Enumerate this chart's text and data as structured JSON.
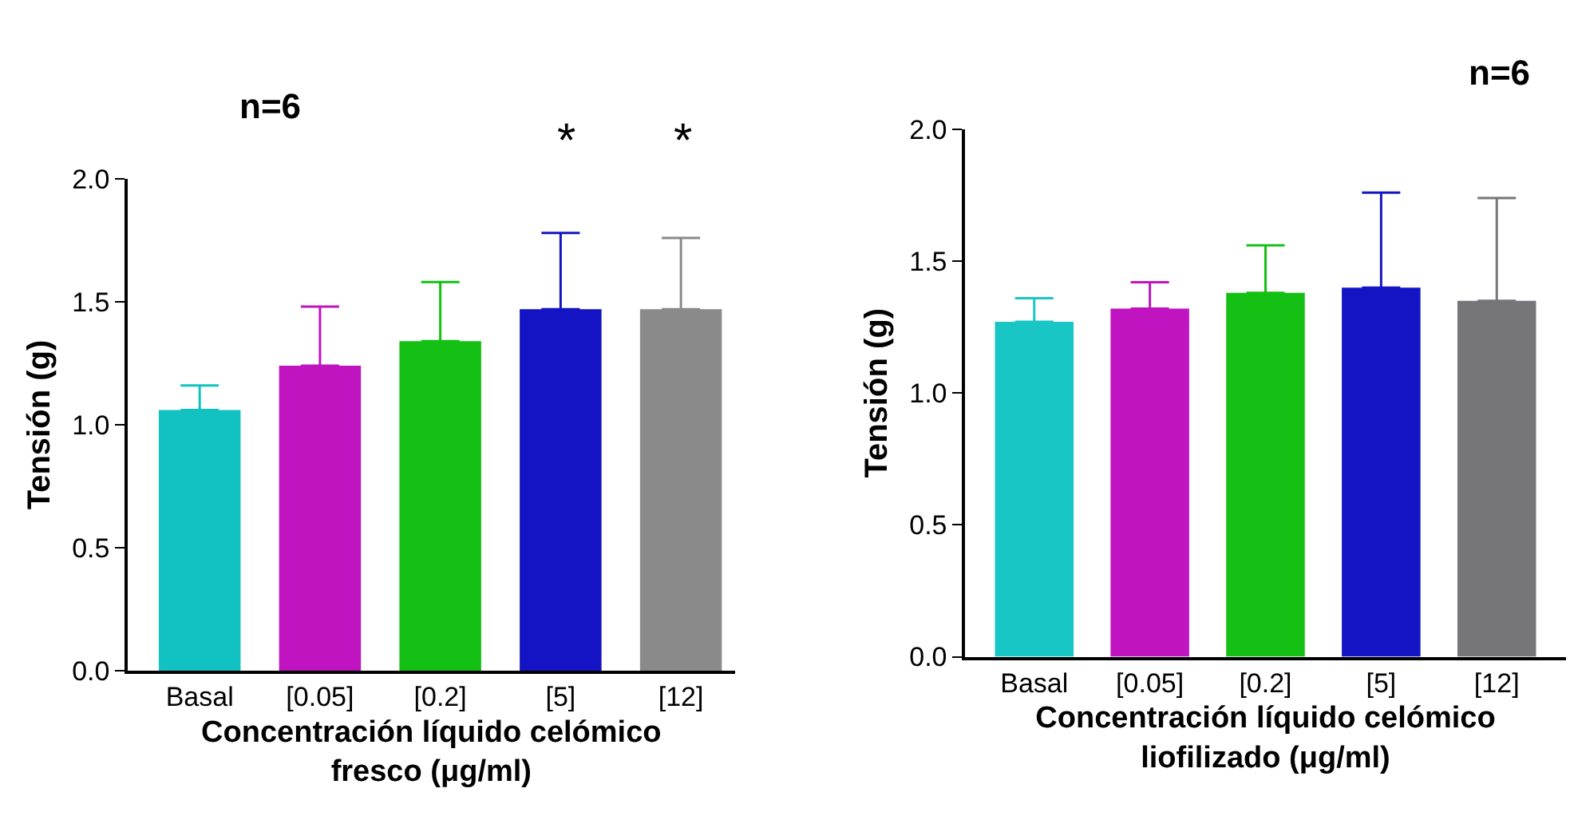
{
  "chart_data": [
    {
      "type": "bar",
      "xlabel": "Concentración líquido celómico\nfresco (μg/ml)",
      "ylabel": "Tensión (g)",
      "categories": [
        "Basal",
        "[0.05]",
        "[0.2]",
        "[5]",
        "[12]"
      ],
      "values": [
        1.06,
        1.24,
        1.34,
        1.47,
        1.47
      ],
      "errors": [
        [
          1.06,
          1.16
        ],
        [
          1.24,
          1.48
        ],
        [
          1.34,
          1.58
        ],
        [
          1.47,
          1.78
        ],
        [
          1.47,
          1.76
        ]
      ],
      "colors": [
        "#12c2c2",
        "#c014c0",
        "#14c014",
        "#1414c4",
        "#8a8a8a"
      ],
      "ylim": [
        0,
        2
      ],
      "yticks": [
        {
          "value": 0,
          "label": "0.0"
        },
        {
          "value": 0.5,
          "label": "0.5"
        },
        {
          "value": 1,
          "label": "1.0"
        },
        {
          "value": 1.5,
          "label": "1.5"
        },
        {
          "value": 2,
          "label": "2.0"
        }
      ],
      "annotations": [
        "n=6",
        "*",
        "*"
      ]
    },
    {
      "type": "bar",
      "xlabel": "Concentración líquido celómico\nliofilizado (μg/ml)",
      "ylabel": "Tensión (g)",
      "categories": [
        "Basal",
        "[0.05]",
        "[0.2]",
        "[5]",
        "[12]"
      ],
      "values": [
        1.27,
        1.32,
        1.38,
        1.4,
        1.35
      ],
      "errors": [
        [
          1.27,
          1.36
        ],
        [
          1.32,
          1.42
        ],
        [
          1.38,
          1.56
        ],
        [
          1.4,
          1.76
        ],
        [
          1.35,
          1.74
        ]
      ],
      "colors": [
        "#19c6c6",
        "#c014c0",
        "#14c014",
        "#1414c4",
        "#76767a"
      ],
      "ylim": [
        0,
        2
      ],
      "yticks": [
        {
          "value": 0,
          "label": "0.0"
        },
        {
          "value": 0.5,
          "label": "0.5"
        },
        {
          "value": 1,
          "label": "1.0"
        },
        {
          "value": 1.5,
          "label": "1.5"
        },
        {
          "value": 2,
          "label": "2.0"
        }
      ],
      "annotations": [
        "n=6"
      ]
    }
  ]
}
